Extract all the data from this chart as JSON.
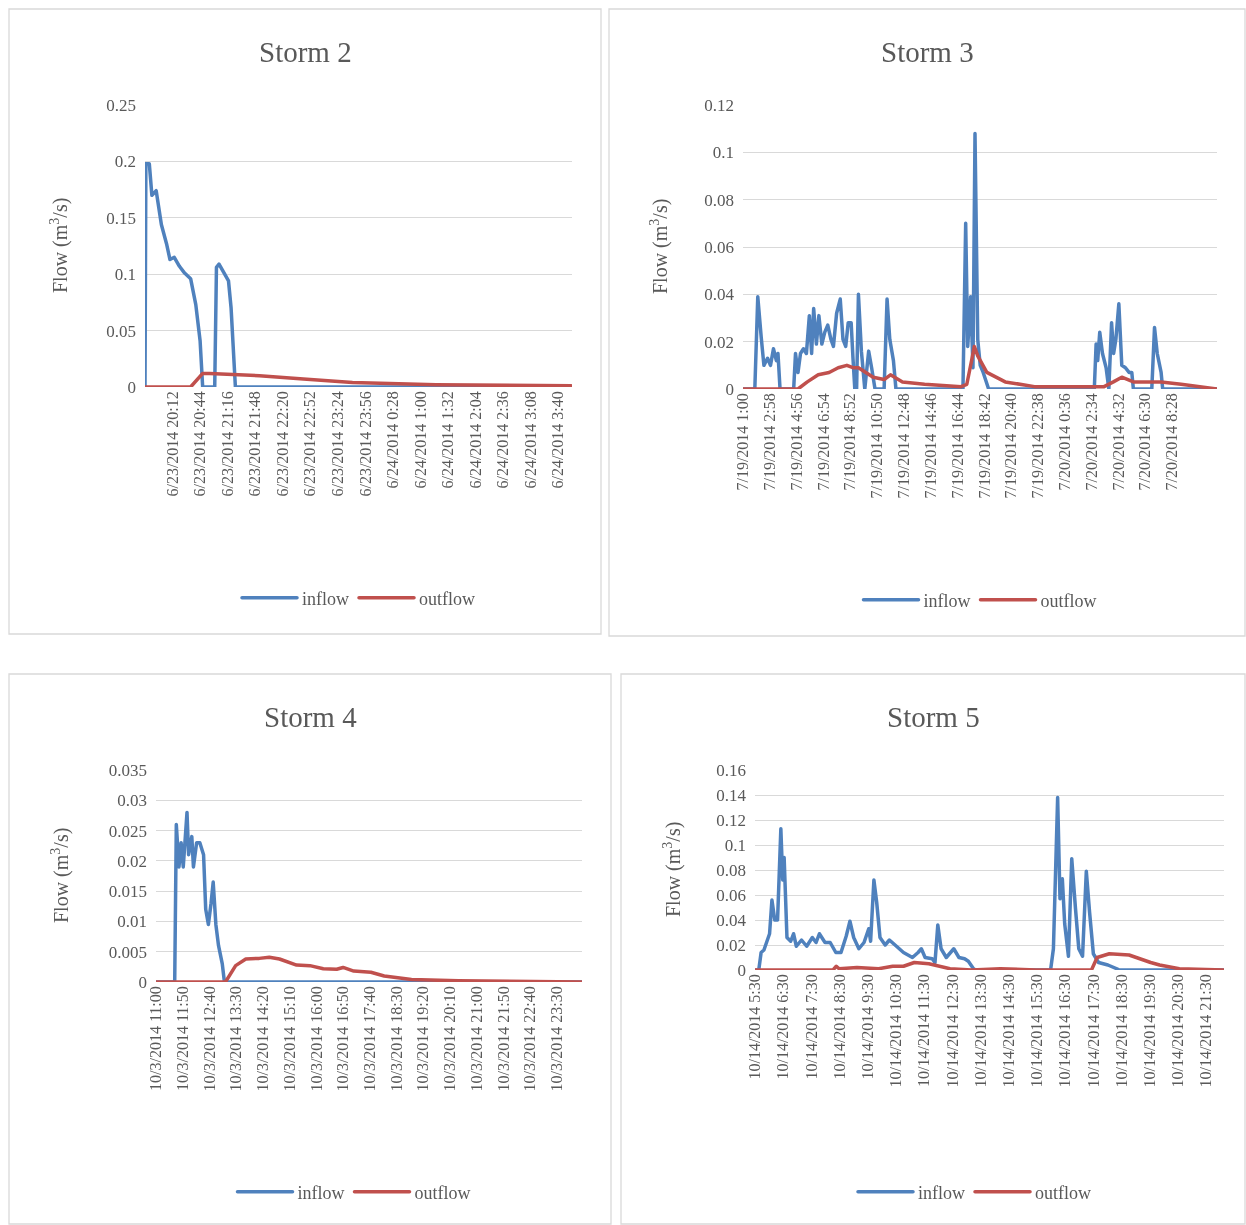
{
  "chart_data": [
    {
      "type": "line",
      "title": "Storm 2",
      "ylabel": "Flow (m$^{3}$/s)",
      "grid": "y",
      "legend": "bottom",
      "line_style": "solid",
      "xlim": [
        "2014-06-23T19:40",
        "2014-06-24T03:56"
      ],
      "ylim": [
        0,
        0.25
      ],
      "yticks": [
        0,
        0.05,
        0.1,
        0.15,
        0.2,
        0.25
      ],
      "xticks": [
        {
          "value": "2014-06-23T20:12",
          "label": "6/23/2014 20:12"
        },
        {
          "value": "2014-06-23T20:44",
          "label": "6/23/2014 20:44"
        },
        {
          "value": "2014-06-23T21:16",
          "label": "6/23/2014 21:16"
        },
        {
          "value": "2014-06-23T21:48",
          "label": "6/23/2014 21:48"
        },
        {
          "value": "2014-06-23T22:20",
          "label": "6/23/2014 22:20"
        },
        {
          "value": "2014-06-23T22:52",
          "label": "6/23/2014 22:52"
        },
        {
          "value": "2014-06-23T23:24",
          "label": "6/23/2014 23:24"
        },
        {
          "value": "2014-06-23T23:56",
          "label": "6/23/2014 23:56"
        },
        {
          "value": "2014-06-24T00:28",
          "label": "6/24/2014 0:28"
        },
        {
          "value": "2014-06-24T01:00",
          "label": "6/24/2014 1:00"
        },
        {
          "value": "2014-06-24T01:32",
          "label": "6/24/2014 1:32"
        },
        {
          "value": "2014-06-24T02:04",
          "label": "6/24/2014 2:04"
        },
        {
          "value": "2014-06-24T02:36",
          "label": "6/24/2014 2:36"
        },
        {
          "value": "2014-06-24T03:08",
          "label": "6/24/2014 3:08"
        },
        {
          "value": "2014-06-24T03:40",
          "label": "6/24/2014 3:40"
        }
      ],
      "series": [
        {
          "name": "inflow",
          "color": "#4f81bd",
          "x": [
            "2014-06-23T19:40",
            "2014-06-23T19:41",
            "2014-06-23T19:45",
            "2014-06-23T19:48",
            "2014-06-23T19:53",
            "2014-06-23T19:59",
            "2014-06-23T20:05",
            "2014-06-23T20:09",
            "2014-06-23T20:14",
            "2014-06-23T20:20",
            "2014-06-23T20:26",
            "2014-06-23T20:33",
            "2014-06-23T20:39",
            "2014-06-23T20:44",
            "2014-06-23T20:47",
            "2014-06-23T21:01",
            "2014-06-23T21:03",
            "2014-06-23T21:06",
            "2014-06-23T21:17",
            "2014-06-23T21:20",
            "2014-06-23T21:25",
            "2014-06-24T03:56"
          ],
          "values": [
            0,
            0.198,
            0.198,
            0.17,
            0.174,
            0.144,
            0.127,
            0.113,
            0.115,
            0.107,
            0.101,
            0.096,
            0.073,
            0.041,
            0,
            0,
            0.106,
            0.109,
            0.094,
            0.07,
            0,
            0
          ]
        },
        {
          "name": "outflow",
          "color": "#c0504d",
          "x": [
            "2014-06-23T19:40",
            "2014-06-23T20:33",
            "2014-06-23T20:47",
            "2014-06-23T20:55",
            "2014-06-23T21:53",
            "2014-06-23T22:44",
            "2014-06-23T23:41",
            "2014-06-24T01:18",
            "2014-06-24T03:55"
          ],
          "values": [
            0,
            0,
            0.012,
            0.012,
            0.01,
            0.007,
            0.004,
            0.002,
            0.001
          ]
        }
      ]
    },
    {
      "type": "line",
      "title": "Storm 3",
      "ylabel": "Flow (m$^{3}$/s)",
      "grid": "y",
      "legend": "bottom",
      "line_style": "solid",
      "xlim": [
        "2014-07-19T01:00",
        "2014-07-20T11:46"
      ],
      "ylim": [
        0,
        0.12
      ],
      "yticks": [
        0,
        0.02,
        0.04,
        0.06,
        0.08,
        0.1,
        0.12
      ],
      "xticks": [
        {
          "value": "2014-07-19T01:00",
          "label": "7/19/2014 1:00"
        },
        {
          "value": "2014-07-19T02:58",
          "label": "7/19/2014 2:58"
        },
        {
          "value": "2014-07-19T04:56",
          "label": "7/19/2014 4:56"
        },
        {
          "value": "2014-07-19T06:54",
          "label": "7/19/2014 6:54"
        },
        {
          "value": "2014-07-19T08:52",
          "label": "7/19/2014 8:52"
        },
        {
          "value": "2014-07-19T10:50",
          "label": "7/19/2014 10:50"
        },
        {
          "value": "2014-07-19T12:48",
          "label": "7/19/2014 12:48"
        },
        {
          "value": "2014-07-19T14:46",
          "label": "7/19/2014 14:46"
        },
        {
          "value": "2014-07-19T16:44",
          "label": "7/19/2014 16:44"
        },
        {
          "value": "2014-07-19T18:42",
          "label": "7/19/2014 18:42"
        },
        {
          "value": "2014-07-19T20:40",
          "label": "7/19/2014 20:40"
        },
        {
          "value": "2014-07-19T22:38",
          "label": "7/19/2014 22:38"
        },
        {
          "value": "2014-07-20T00:36",
          "label": "7/20/2014 0:36"
        },
        {
          "value": "2014-07-20T02:34",
          "label": "7/20/2014 2:34"
        },
        {
          "value": "2014-07-20T04:32",
          "label": "7/20/2014 4:32"
        },
        {
          "value": "2014-07-20T06:30",
          "label": "7/20/2014 6:30"
        },
        {
          "value": "2014-07-20T08:28",
          "label": "7/20/2014 8:28"
        }
      ],
      "series": [
        {
          "name": "inflow",
          "color": "#4f81bd",
          "x": [
            "2014-07-19T01:00",
            "2014-07-19T01:52",
            "2014-07-19T02:05",
            "2014-07-19T02:20",
            "2014-07-19T02:32",
            "2014-07-19T02:48",
            "2014-07-19T03:01",
            "2014-07-19T03:14",
            "2014-07-19T03:27",
            "2014-07-19T03:34",
            "2014-07-19T03:43",
            "2014-07-19T04:43",
            "2014-07-19T04:51",
            "2014-07-19T05:02",
            "2014-07-19T05:13",
            "2014-07-19T05:26",
            "2014-07-19T05:39",
            "2014-07-19T05:52",
            "2014-07-19T06:02",
            "2014-07-19T06:11",
            "2014-07-19T06:23",
            "2014-07-19T06:34",
            "2014-07-19T06:47",
            "2014-07-19T07:00",
            "2014-07-19T07:13",
            "2014-07-19T07:27",
            "2014-07-19T07:38",
            "2014-07-19T07:52",
            "2014-07-19T08:08",
            "2014-07-19T08:20",
            "2014-07-19T08:32",
            "2014-07-19T08:43",
            "2014-07-19T08:56",
            "2014-07-19T09:04",
            "2014-07-19T09:12",
            "2014-07-19T09:20",
            "2014-07-19T09:28",
            "2014-07-19T09:41",
            "2014-07-19T09:56",
            "2014-07-19T10:13",
            "2014-07-19T10:26",
            "2014-07-19T10:41",
            "2014-07-19T11:21",
            "2014-07-19T11:34",
            "2014-07-19T11:46",
            "2014-07-19T12:02",
            "2014-07-19T12:13",
            "2014-07-19T17:08",
            "2014-07-19T17:20",
            "2014-07-19T17:29",
            "2014-07-19T17:42",
            "2014-07-19T17:52",
            "2014-07-19T18:01",
            "2014-07-19T18:13",
            "2014-07-19T18:24",
            "2014-07-19T18:37",
            "2014-07-19T19:01",
            "2014-07-20T02:46",
            "2014-07-20T02:54",
            "2014-07-20T03:01",
            "2014-07-20T03:10",
            "2014-07-20T03:22",
            "2014-07-20T03:38",
            "2014-07-20T03:50",
            "2014-07-20T04:02",
            "2014-07-20T04:11",
            "2014-07-20T04:21",
            "2014-07-20T04:34",
            "2014-07-20T04:47",
            "2014-07-20T05:03",
            "2014-07-20T05:19",
            "2014-07-20T05:31",
            "2014-07-20T05:38",
            "2014-07-20T06:59",
            "2014-07-20T07:11",
            "2014-07-20T07:23",
            "2014-07-20T07:40",
            "2014-07-20T07:47",
            "2014-07-20T11:46"
          ],
          "values": [
            0,
            0,
            0.039,
            0.022,
            0.01,
            0.013,
            0.01,
            0.017,
            0.012,
            0.015,
            0,
            0,
            0.015,
            0.007,
            0.015,
            0.017,
            0.015,
            0.031,
            0.015,
            0.034,
            0.019,
            0.031,
            0.019,
            0.024,
            0.027,
            0.021,
            0.018,
            0.032,
            0.038,
            0.021,
            0.018,
            0.028,
            0.028,
            0.013,
            0,
            0,
            0.04,
            0.016,
            0,
            0.016,
            0.009,
            0,
            0,
            0.038,
            0.021,
            0.012,
            0,
            0,
            0.07,
            0.018,
            0.039,
            0.009,
            0.108,
            0.021,
            0.01,
            0.007,
            0,
            0,
            0.019,
            0.012,
            0.024,
            0.015,
            0.009,
            0,
            0.028,
            0.015,
            0.021,
            0.036,
            0.01,
            0.009,
            0.007,
            0.007,
            0,
            0,
            0.026,
            0.015,
            0.007,
            0,
            0
          ]
        },
        {
          "name": "outflow",
          "color": "#c0504d",
          "x": [
            "2014-07-19T01:00",
            "2014-07-19T05:02",
            "2014-07-19T05:43",
            "2014-07-19T06:31",
            "2014-07-19T07:19",
            "2014-07-19T07:59",
            "2014-07-19T08:37",
            "2014-07-19T09:04",
            "2014-07-19T09:28",
            "2014-07-19T10:33",
            "2014-07-19T11:21",
            "2014-07-19T11:49",
            "2014-07-19T12:42",
            "2014-07-19T14:19",
            "2014-07-19T17:00",
            "2014-07-19T17:25",
            "2014-07-19T17:46",
            "2014-07-19T17:58",
            "2014-07-19T18:13",
            "2014-07-19T18:53",
            "2014-07-19T20:14",
            "2014-07-19T22:23",
            "2014-07-20T01:04",
            "2014-07-20T03:29",
            "2014-07-20T04:10",
            "2014-07-20T04:47",
            "2014-07-20T05:38",
            "2014-07-20T06:59",
            "2014-07-20T07:40",
            "2014-07-20T09:08",
            "2014-07-20T11:46"
          ],
          "values": [
            0,
            0,
            0.003,
            0.006,
            0.007,
            0.009,
            0.01,
            0.009,
            0.009,
            0.005,
            0.004,
            0.006,
            0.003,
            0.002,
            0.001,
            0.002,
            0.012,
            0.018,
            0.014,
            0.007,
            0.003,
            0.001,
            0.001,
            0.001,
            0.003,
            0.005,
            0.003,
            0.003,
            0.003,
            0.002,
            0
          ]
        }
      ]
    },
    {
      "type": "line",
      "title": "Storm 4",
      "ylabel": "Flow (m$^{3}$/s)",
      "grid": "y",
      "legend": "bottom",
      "line_style": "solid",
      "xlim": [
        "2014-10-03T11:00",
        "2014-10-04T00:17"
      ],
      "ylim": [
        0,
        0.035
      ],
      "yticks": [
        0,
        0.005,
        0.01,
        0.015,
        0.02,
        0.025,
        0.03,
        0.035
      ],
      "xticks": [
        {
          "value": "2014-10-03T11:00",
          "label": "10/3/2014 11:00"
        },
        {
          "value": "2014-10-03T11:50",
          "label": "10/3/2014 11:50"
        },
        {
          "value": "2014-10-03T12:40",
          "label": "10/3/2014 12:40"
        },
        {
          "value": "2014-10-03T13:30",
          "label": "10/3/2014 13:30"
        },
        {
          "value": "2014-10-03T14:20",
          "label": "10/3/2014 14:20"
        },
        {
          "value": "2014-10-03T15:10",
          "label": "10/3/2014 15:10"
        },
        {
          "value": "2014-10-03T16:00",
          "label": "10/3/2014 16:00"
        },
        {
          "value": "2014-10-03T16:50",
          "label": "10/3/2014 16:50"
        },
        {
          "value": "2014-10-03T17:40",
          "label": "10/3/2014 17:40"
        },
        {
          "value": "2014-10-03T18:30",
          "label": "10/3/2014 18:30"
        },
        {
          "value": "2014-10-03T19:20",
          "label": "10/3/2014 19:20"
        },
        {
          "value": "2014-10-03T20:10",
          "label": "10/3/2014 20:10"
        },
        {
          "value": "2014-10-03T21:00",
          "label": "10/3/2014 21:00"
        },
        {
          "value": "2014-10-03T21:50",
          "label": "10/3/2014 21:50"
        },
        {
          "value": "2014-10-03T22:40",
          "label": "10/3/2014 22:40"
        },
        {
          "value": "2014-10-03T23:30",
          "label": "10/3/2014 23:30"
        }
      ],
      "series": [
        {
          "name": "inflow",
          "color": "#4f81bd",
          "x": [
            "2014-10-03T11:00",
            "2014-10-03T11:35",
            "2014-10-03T11:38",
            "2014-10-03T11:43",
            "2014-10-03T11:47",
            "2014-10-03T11:51",
            "2014-10-03T11:58",
            "2014-10-03T12:01",
            "2014-10-03T12:07",
            "2014-10-03T12:10",
            "2014-10-03T12:16",
            "2014-10-03T12:22",
            "2014-10-03T12:29",
            "2014-10-03T12:33",
            "2014-10-03T12:38",
            "2014-10-03T12:43",
            "2014-10-03T12:47",
            "2014-10-03T12:52",
            "2014-10-03T12:57",
            "2014-10-03T13:04",
            "2014-10-03T13:08",
            "2014-10-04T00:17"
          ],
          "values": [
            0,
            0,
            0.026,
            0.019,
            0.023,
            0.019,
            0.028,
            0.021,
            0.024,
            0.019,
            0.023,
            0.023,
            0.021,
            0.012,
            0.0095,
            0.013,
            0.0165,
            0.0095,
            0.006,
            0.003,
            0,
            0
          ]
        },
        {
          "name": "outflow",
          "color": "#c0504d",
          "x": [
            "2014-10-03T11:00",
            "2014-10-03T13:10",
            "2014-10-03T13:29",
            "2014-10-03T13:48",
            "2014-10-03T14:13",
            "2014-10-03T14:32",
            "2014-10-03T14:51",
            "2014-10-03T15:23",
            "2014-10-03T15:48",
            "2014-10-03T16:13",
            "2014-10-03T16:38",
            "2014-10-03T16:50",
            "2014-10-03T17:10",
            "2014-10-03T17:42",
            "2014-10-03T18:07",
            "2014-10-03T18:58",
            "2014-10-03T20:26",
            "2014-10-04T00:17"
          ],
          "values": [
            0,
            0,
            0.0027,
            0.0038,
            0.0039,
            0.0041,
            0.0038,
            0.0028,
            0.0027,
            0.0022,
            0.0021,
            0.0024,
            0.0018,
            0.0016,
            0.001,
            0.0004,
            0.0002,
            0
          ]
        }
      ]
    },
    {
      "type": "line",
      "title": "Storm 5",
      "ylabel": "Flow (m$^{3}$/s)",
      "grid": "y",
      "legend": "bottom",
      "line_style": "solid",
      "xlim": [
        "2014-10-14T05:30",
        "2014-10-14T22:08"
      ],
      "ylim": [
        0,
        0.16
      ],
      "yticks": [
        0,
        0.02,
        0.04,
        0.06,
        0.08,
        0.1,
        0.12,
        0.14,
        0.16
      ],
      "xticks": [
        {
          "value": "2014-10-14T05:30",
          "label": "10/14/2014 5:30"
        },
        {
          "value": "2014-10-14T06:30",
          "label": "10/14/2014 6:30"
        },
        {
          "value": "2014-10-14T07:30",
          "label": "10/14/2014 7:30"
        },
        {
          "value": "2014-10-14T08:30",
          "label": "10/14/2014 8:30"
        },
        {
          "value": "2014-10-14T09:30",
          "label": "10/14/2014 9:30"
        },
        {
          "value": "2014-10-14T10:30",
          "label": "10/14/2014 10:30"
        },
        {
          "value": "2014-10-14T11:30",
          "label": "10/14/2014 11:30"
        },
        {
          "value": "2014-10-14T12:30",
          "label": "10/14/2014 12:30"
        },
        {
          "value": "2014-10-14T13:30",
          "label": "10/14/2014 13:30"
        },
        {
          "value": "2014-10-14T14:30",
          "label": "10/14/2014 14:30"
        },
        {
          "value": "2014-10-14T15:30",
          "label": "10/14/2014 15:30"
        },
        {
          "value": "2014-10-14T16:30",
          "label": "10/14/2014 16:30"
        },
        {
          "value": "2014-10-14T17:30",
          "label": "10/14/2014 17:30"
        },
        {
          "value": "2014-10-14T18:30",
          "label": "10/14/2014 18:30"
        },
        {
          "value": "2014-10-14T19:30",
          "label": "10/14/2014 19:30"
        },
        {
          "value": "2014-10-14T20:30",
          "label": "10/14/2014 20:30"
        },
        {
          "value": "2014-10-14T21:30",
          "label": "10/14/2014 21:30"
        }
      ],
      "series": [
        {
          "name": "inflow",
          "color": "#4f81bd",
          "x": [
            "2014-10-14T05:30",
            "2014-10-14T05:38",
            "2014-10-14T05:43",
            "2014-10-14T05:49",
            "2014-10-14T06:01",
            "2014-10-14T06:06",
            "2014-10-14T06:12",
            "2014-10-14T06:18",
            "2014-10-14T06:25",
            "2014-10-14T06:29",
            "2014-10-14T06:32",
            "2014-10-14T06:38",
            "2014-10-14T06:46",
            "2014-10-14T06:52",
            "2014-10-14T06:58",
            "2014-10-14T07:09",
            "2014-10-14T07:20",
            "2014-10-14T07:32",
            "2014-10-14T07:40",
            "2014-10-14T07:47",
            "2014-10-14T07:59",
            "2014-10-14T08:10",
            "2014-10-14T08:22",
            "2014-10-14T08:33",
            "2014-10-14T08:44",
            "2014-10-14T08:52",
            "2014-10-14T09:00",
            "2014-10-14T09:11",
            "2014-10-14T09:22",
            "2014-10-14T09:32",
            "2014-10-14T09:36",
            "2014-10-14T09:43",
            "2014-10-14T09:49",
            "2014-10-14T09:56",
            "2014-10-14T10:07",
            "2014-10-14T10:16",
            "2014-10-14T10:31",
            "2014-10-14T10:46",
            "2014-10-14T11:05",
            "2014-10-14T11:17",
            "2014-10-14T11:24",
            "2014-10-14T11:32",
            "2014-10-14T11:47",
            "2014-10-14T11:53",
            "2014-10-14T11:59",
            "2014-10-14T12:06",
            "2014-10-14T12:17",
            "2014-10-14T12:33",
            "2014-10-14T12:44",
            "2014-10-14T12:56",
            "2014-10-14T13:04",
            "2014-10-14T13:15",
            "2014-10-14T13:19",
            "2014-10-14T15:59",
            "2014-10-14T16:05",
            "2014-10-14T16:14",
            "2014-10-14T16:19",
            "2014-10-14T16:24",
            "2014-10-14T16:29",
            "2014-10-14T16:37",
            "2014-10-14T16:44",
            "2014-10-14T16:52",
            "2014-10-14T16:59",
            "2014-10-14T17:07",
            "2014-10-14T17:15",
            "2014-10-14T17:22",
            "2014-10-14T17:30",
            "2014-10-14T17:41",
            "2014-10-14T18:01",
            "2014-10-14T18:20",
            "2014-10-14T18:25",
            "2014-10-14T22:08"
          ],
          "values": [
            0,
            0,
            0.014,
            0.016,
            0.029,
            0.056,
            0.04,
            0.04,
            0.113,
            0.072,
            0.09,
            0.026,
            0.023,
            0.029,
            0.019,
            0.024,
            0.019,
            0.026,
            0.022,
            0.029,
            0.022,
            0.022,
            0.014,
            0.014,
            0.027,
            0.039,
            0.026,
            0.017,
            0.022,
            0.033,
            0.023,
            0.072,
            0.054,
            0.026,
            0.02,
            0.024,
            0.019,
            0.014,
            0.01,
            0.014,
            0.017,
            0.01,
            0.009,
            0.006,
            0.036,
            0.017,
            0.01,
            0.017,
            0.01,
            0.009,
            0.007,
            0.001,
            0,
            0,
            0.017,
            0.138,
            0.057,
            0.073,
            0.037,
            0.011,
            0.089,
            0.049,
            0.017,
            0.011,
            0.079,
            0.046,
            0.013,
            0.006,
            0.004,
            0.001,
            0,
            0
          ]
        },
        {
          "name": "outflow",
          "color": "#c0504d",
          "x": [
            "2014-10-14T05:30",
            "2014-10-14T08:16",
            "2014-10-14T08:23",
            "2014-10-14T08:29",
            "2014-10-14T09:07",
            "2014-10-14T09:53",
            "2014-10-14T10:23",
            "2014-10-14T10:46",
            "2014-10-14T11:09",
            "2014-10-14T11:40",
            "2014-10-14T12:25",
            "2014-10-14T13:11",
            "2014-10-14T14:12",
            "2014-10-14T15:28",
            "2014-10-14T17:26",
            "2014-10-14T17:38",
            "2014-10-14T18:04",
            "2014-10-14T18:46",
            "2014-10-14T19:32",
            "2014-10-14T19:51",
            "2014-10-14T20:33",
            "2014-10-14T22:08"
          ],
          "values": [
            0,
            0,
            0.003,
            0.001,
            0.002,
            0.001,
            0.003,
            0.003,
            0.006,
            0.005,
            0.001,
            0,
            0.001,
            0,
            0,
            0.01,
            0.013,
            0.012,
            0.006,
            0.004,
            0.001,
            0
          ]
        }
      ]
    }
  ]
}
